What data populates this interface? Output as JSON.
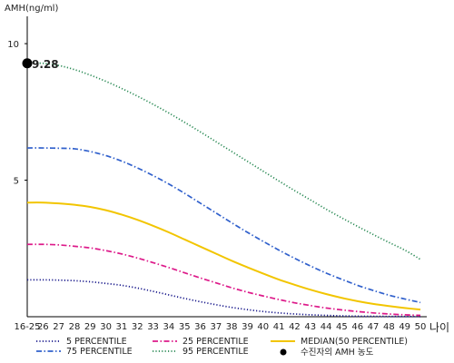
{
  "chart_data": {
    "type": "line",
    "ylabel": "AMH(ng/ml)",
    "xlabel": "나이",
    "categories": [
      "16-25",
      "26",
      "27",
      "28",
      "29",
      "30",
      "31",
      "32",
      "33",
      "34",
      "35",
      "36",
      "37",
      "38",
      "39",
      "40",
      "41",
      "42",
      "43",
      "44",
      "45",
      "46",
      "47",
      "48",
      "49",
      "50"
    ],
    "ylim": [
      0,
      11
    ],
    "yticks": [
      "5",
      "10"
    ],
    "series": [
      {
        "name": "5 PERCENTILE",
        "color": "#1a1a8c",
        "style": "dotted",
        "values": [
          1.35,
          1.35,
          1.34,
          1.32,
          1.28,
          1.22,
          1.15,
          1.05,
          0.93,
          0.8,
          0.67,
          0.55,
          0.44,
          0.34,
          0.26,
          0.19,
          0.14,
          0.1,
          0.07,
          0.05,
          0.03,
          0.02,
          0.015,
          0.01,
          0.008,
          0.005
        ]
      },
      {
        "name": "25 PERCENTILE",
        "color": "#dd1a8a",
        "style": "dashdot",
        "values": [
          2.65,
          2.65,
          2.63,
          2.58,
          2.52,
          2.42,
          2.3,
          2.15,
          1.98,
          1.8,
          1.61,
          1.42,
          1.24,
          1.06,
          0.9,
          0.76,
          0.63,
          0.51,
          0.41,
          0.32,
          0.25,
          0.19,
          0.14,
          0.1,
          0.07,
          0.05
        ]
      },
      {
        "name": "MEDIAN(50 PERCENTILE)",
        "color": "#f2c500",
        "style": "solid",
        "values": [
          4.18,
          4.18,
          4.15,
          4.1,
          4.02,
          3.9,
          3.74,
          3.55,
          3.33,
          3.09,
          2.83,
          2.57,
          2.31,
          2.05,
          1.81,
          1.58,
          1.36,
          1.17,
          0.99,
          0.83,
          0.69,
          0.57,
          0.47,
          0.39,
          0.32,
          0.26
        ]
      },
      {
        "name": "75 PERCENTILE",
        "color": "#3060cc",
        "style": "dashdot",
        "values": [
          6.18,
          6.18,
          6.17,
          6.15,
          6.05,
          5.9,
          5.7,
          5.45,
          5.17,
          4.86,
          4.52,
          4.16,
          3.8,
          3.44,
          3.09,
          2.76,
          2.44,
          2.14,
          1.86,
          1.6,
          1.37,
          1.15,
          0.96,
          0.79,
          0.65,
          0.52
        ]
      },
      {
        "name": "95 PERCENTILE",
        "color": "#2a8a55",
        "style": "dotted",
        "values": [
          9.28,
          9.28,
          9.2,
          9.05,
          8.85,
          8.62,
          8.36,
          8.08,
          7.78,
          7.46,
          7.12,
          6.77,
          6.41,
          6.05,
          5.69,
          5.33,
          4.97,
          4.62,
          4.28,
          3.94,
          3.62,
          3.31,
          3.01,
          2.72,
          2.44,
          2.1
        ]
      }
    ],
    "marker": {
      "legend_label": "수진자의 AMH 농도",
      "category": "16-25",
      "value": 9.28,
      "label": "9.28"
    },
    "legend_placement": "bottom",
    "grid": false
  }
}
